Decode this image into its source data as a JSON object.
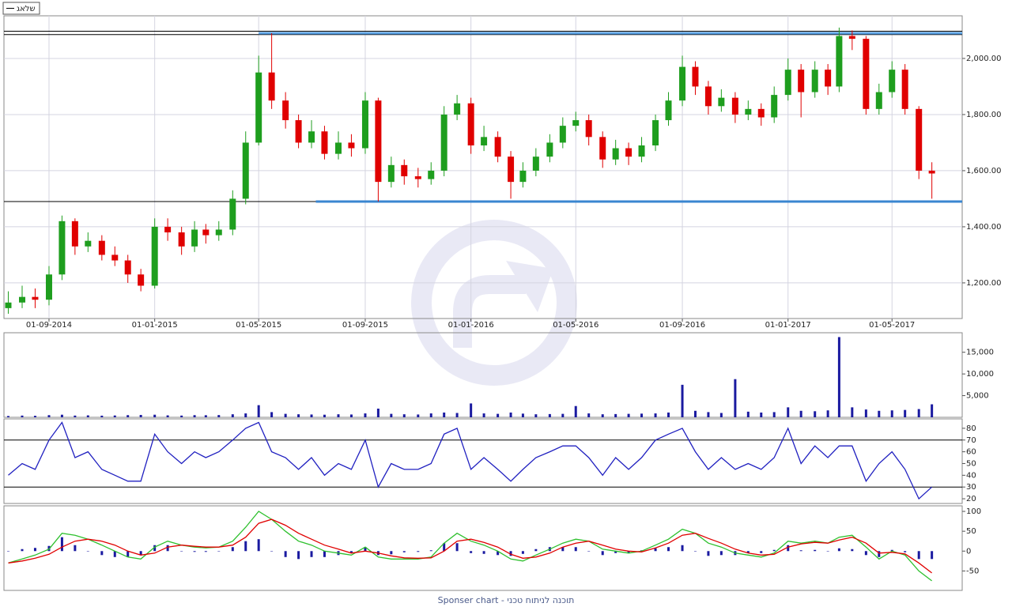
{
  "chart_data": [
    {
      "type": "candlestick",
      "name": "שלאג",
      "up_color": "#1e9e1e",
      "down_color": "#e00000",
      "grid": true,
      "x": [
        "16-07-2014",
        "01-08-2014",
        "16-08-2014",
        "01-09-2014",
        "16-09-2014",
        "01-10-2014",
        "16-10-2014",
        "01-11-2014",
        "16-11-2014",
        "01-12-2014",
        "16-12-2014",
        "01-01-2015",
        "16-01-2015",
        "01-02-2015",
        "16-02-2015",
        "01-03-2015",
        "16-03-2015",
        "01-04-2015",
        "16-04-2015",
        "01-05-2015",
        "16-05-2015",
        "01-06-2015",
        "16-06-2015",
        "01-07-2015",
        "16-07-2015",
        "01-08-2015",
        "16-08-2015",
        "01-09-2015",
        "16-09-2015",
        "01-10-2015",
        "16-10-2015",
        "01-11-2015",
        "16-11-2015",
        "01-12-2015",
        "16-12-2015",
        "01-01-2016",
        "16-01-2016",
        "01-02-2016",
        "16-02-2016",
        "01-03-2016",
        "16-03-2016",
        "01-04-2016",
        "16-04-2016",
        "01-05-2016",
        "16-05-2016",
        "01-06-2016",
        "16-06-2016",
        "01-07-2016",
        "16-07-2016",
        "01-08-2016",
        "16-08-2016",
        "01-09-2016",
        "16-09-2016",
        "01-10-2016",
        "16-10-2016",
        "01-11-2016",
        "16-11-2016",
        "01-12-2016",
        "16-12-2016",
        "01-01-2017",
        "16-01-2017",
        "01-02-2017",
        "16-02-2017",
        "01-03-2017",
        "16-03-2017",
        "01-04-2017",
        "16-04-2017",
        "01-05-2017",
        "16-05-2017",
        "01-06-2017",
        "16-06-2017"
      ],
      "open": [
        1110,
        1130,
        1150,
        1140,
        1230,
        1420,
        1330,
        1350,
        1300,
        1280,
        1230,
        1190,
        1400,
        1380,
        1330,
        1390,
        1370,
        1390,
        1500,
        1700,
        1950,
        1850,
        1780,
        1700,
        1740,
        1660,
        1700,
        1680,
        1850,
        1560,
        1620,
        1580,
        1570,
        1600,
        1800,
        1840,
        1690,
        1720,
        1650,
        1560,
        1600,
        1650,
        1700,
        1760,
        1780,
        1720,
        1640,
        1680,
        1650,
        1690,
        1780,
        1850,
        1970,
        1900,
        1830,
        1860,
        1800,
        1820,
        1790,
        1870,
        1960,
        1880,
        1960,
        1900,
        2080,
        2070,
        1820,
        1880,
        1960,
        1820,
        1600
      ],
      "high": [
        1170,
        1190,
        1180,
        1260,
        1440,
        1430,
        1380,
        1370,
        1330,
        1300,
        1250,
        1430,
        1430,
        1400,
        1420,
        1410,
        1420,
        1530,
        1740,
        2010,
        2090,
        1880,
        1800,
        1780,
        1760,
        1740,
        1730,
        1880,
        1860,
        1650,
        1640,
        1610,
        1630,
        1830,
        1870,
        1860,
        1760,
        1740,
        1670,
        1630,
        1680,
        1730,
        1790,
        1810,
        1800,
        1740,
        1710,
        1700,
        1720,
        1800,
        1880,
        2010,
        1990,
        1920,
        1890,
        1880,
        1850,
        1840,
        1900,
        2000,
        1980,
        1990,
        1980,
        2110,
        2100,
        2080,
        1910,
        1990,
        1980,
        1830,
        1630
      ],
      "low": [
        1090,
        1110,
        1110,
        1120,
        1210,
        1300,
        1310,
        1280,
        1260,
        1200,
        1170,
        1180,
        1350,
        1300,
        1310,
        1340,
        1350,
        1370,
        1480,
        1690,
        1820,
        1750,
        1680,
        1680,
        1640,
        1640,
        1650,
        1660,
        1490,
        1540,
        1550,
        1540,
        1550,
        1580,
        1780,
        1660,
        1670,
        1630,
        1500,
        1540,
        1580,
        1630,
        1680,
        1740,
        1690,
        1610,
        1620,
        1620,
        1630,
        1670,
        1760,
        1830,
        1870,
        1800,
        1810,
        1770,
        1780,
        1760,
        1770,
        1850,
        1790,
        1860,
        1870,
        1880,
        2030,
        1800,
        1800,
        1860,
        1800,
        1570,
        1500
      ],
      "close": [
        1130,
        1150,
        1140,
        1230,
        1420,
        1330,
        1350,
        1300,
        1280,
        1230,
        1190,
        1400,
        1380,
        1330,
        1390,
        1370,
        1390,
        1500,
        1700,
        1950,
        1850,
        1780,
        1700,
        1740,
        1660,
        1700,
        1680,
        1850,
        1560,
        1620,
        1580,
        1570,
        1600,
        1800,
        1840,
        1690,
        1720,
        1650,
        1560,
        1600,
        1650,
        1700,
        1760,
        1780,
        1720,
        1640,
        1680,
        1650,
        1690,
        1780,
        1850,
        1970,
        1900,
        1830,
        1860,
        1800,
        1820,
        1790,
        1870,
        1960,
        1880,
        1960,
        1900,
        2080,
        2070,
        1820,
        1880,
        1960,
        1820,
        1600,
        1590
      ],
      "xlim": [
        "11-07-2014",
        "21-07-2017"
      ],
      "xticks": [
        "01-09-2014",
        "01-01-2015",
        "01-05-2015",
        "01-09-2015",
        "01-01-2016",
        "01-05-2016",
        "01-09-2016",
        "01-01-2017",
        "01-05-2017"
      ],
      "ylim": [
        1073,
        2152
      ],
      "yticks": [
        {
          "value": 1200,
          "label": "1,200.00"
        },
        {
          "value": 1400,
          "label": "1,400.00"
        },
        {
          "value": 1600,
          "label": "1,600.00"
        },
        {
          "value": 1800,
          "label": "1,800.00"
        },
        {
          "value": 2000,
          "label": "2,000.00"
        }
      ],
      "hlines": [
        {
          "value": 2097,
          "color": "#000000"
        },
        {
          "value": 2085,
          "color": "#000000"
        },
        {
          "value": 1490,
          "color": "#000000"
        }
      ],
      "lines": [
        {
          "x": [
            "01-05-2015",
            "21-07-2017"
          ],
          "y": [
            2090,
            2090
          ],
          "color": "#5aa0e0"
        },
        {
          "x": [
            "06-07-2015",
            "21-07-2017"
          ],
          "y": [
            1490,
            1490
          ],
          "color": "#3a86d0"
        }
      ]
    },
    {
      "type": "bar",
      "color": "#1a1aa0",
      "values": [
        300,
        400,
        350,
        500,
        600,
        400,
        450,
        380,
        420,
        500,
        550,
        600,
        450,
        400,
        500,
        480,
        520,
        700,
        900,
        2800,
        1200,
        800,
        700,
        650,
        600,
        700,
        650,
        900,
        2000,
        800,
        700,
        650,
        900,
        1100,
        1000,
        3200,
        900,
        800,
        1100,
        850,
        700,
        750,
        800,
        2600,
        900,
        700,
        750,
        800,
        850,
        900,
        1100,
        7500,
        1500,
        1200,
        1000,
        8800,
        1300,
        1100,
        1200,
        2300,
        1500,
        1400,
        1600,
        18500,
        2300,
        1800,
        1500,
        1600,
        1700,
        1900,
        3000
      ],
      "ylim": [
        0,
        19500
      ],
      "yticks": [
        {
          "value": 5000,
          "label": "5,000"
        },
        {
          "value": 10000,
          "label": "10,000"
        },
        {
          "value": 15000,
          "label": "15,000"
        }
      ]
    },
    {
      "type": "line",
      "series": [
        {
          "color": "#2020c0",
          "values": [
            40,
            50,
            45,
            70,
            85,
            55,
            60,
            45,
            40,
            35,
            35,
            75,
            60,
            50,
            60,
            55,
            60,
            70,
            80,
            85,
            60,
            55,
            45,
            55,
            40,
            50,
            45,
            70,
            30,
            50,
            45,
            45,
            50,
            75,
            80,
            45,
            55,
            45,
            35,
            45,
            55,
            60,
            65,
            65,
            55,
            40,
            55,
            45,
            55,
            70,
            75,
            80,
            60,
            45,
            55,
            45,
            50,
            45,
            55,
            80,
            50,
            65,
            55,
            65,
            65,
            35,
            50,
            60,
            45,
            20,
            30
          ]
        }
      ],
      "ylim": [
        16,
        88
      ],
      "yticks": [
        20,
        30,
        40,
        50,
        60,
        70,
        80
      ],
      "hlines": [
        {
          "value": 70,
          "color": "#000000"
        },
        {
          "value": 30,
          "color": "#000000"
        }
      ]
    },
    {
      "type": "line",
      "series": [
        {
          "color": "#1a1aa0",
          "style": "bar",
          "values": [
            0,
            5,
            8,
            13,
            35,
            15,
            0,
            -10,
            -15,
            -15,
            -10,
            15,
            15,
            0,
            -2,
            -2,
            0,
            10,
            25,
            30,
            0,
            -15,
            -20,
            -15,
            -15,
            -10,
            -5,
            10,
            -10,
            -8,
            -3,
            -2,
            2,
            20,
            20,
            -5,
            -7,
            -10,
            -12,
            -7,
            5,
            10,
            10,
            10,
            0,
            -10,
            -5,
            -5,
            2,
            7,
            10,
            15,
            0,
            -12,
            -10,
            -10,
            -5,
            -5,
            3,
            15,
            2,
            3,
            0,
            7,
            5,
            -10,
            -15,
            3,
            -3,
            -20,
            -20
          ]
        },
        {
          "color": "#2ec02e",
          "values": [
            -30,
            -20,
            -10,
            5,
            45,
            40,
            30,
            15,
            0,
            -15,
            -20,
            10,
            25,
            15,
            10,
            8,
            10,
            25,
            60,
            100,
            80,
            50,
            25,
            15,
            0,
            -5,
            -10,
            10,
            -15,
            -20,
            -20,
            -20,
            -15,
            20,
            45,
            25,
            15,
            0,
            -20,
            -25,
            -10,
            5,
            20,
            30,
            25,
            5,
            0,
            -5,
            0,
            15,
            30,
            55,
            45,
            20,
            10,
            -5,
            -10,
            -15,
            -5,
            25,
            20,
            25,
            20,
            35,
            40,
            10,
            -20,
            0,
            -10,
            -50,
            -75
          ]
        },
        {
          "color": "#e00000",
          "values": [
            -30,
            -25,
            -18,
            -8,
            10,
            25,
            30,
            25,
            15,
            0,
            -10,
            -5,
            10,
            15,
            12,
            10,
            10,
            15,
            35,
            70,
            80,
            65,
            45,
            30,
            15,
            5,
            -5,
            0,
            -5,
            -12,
            -17,
            -18,
            -17,
            0,
            25,
            30,
            22,
            10,
            -8,
            -18,
            -15,
            -5,
            10,
            20,
            25,
            15,
            5,
            0,
            -2,
            8,
            20,
            40,
            45,
            32,
            20,
            5,
            -5,
            -10,
            -8,
            10,
            18,
            22,
            20,
            28,
            35,
            20,
            -5,
            -3,
            -7,
            -30,
            -55
          ]
        }
      ],
      "ylim": [
        -99,
        114
      ],
      "yticks": [
        -50,
        0,
        50,
        100
      ]
    }
  ],
  "footer": "Sponser chart - תוכנה לניתוח טכני"
}
